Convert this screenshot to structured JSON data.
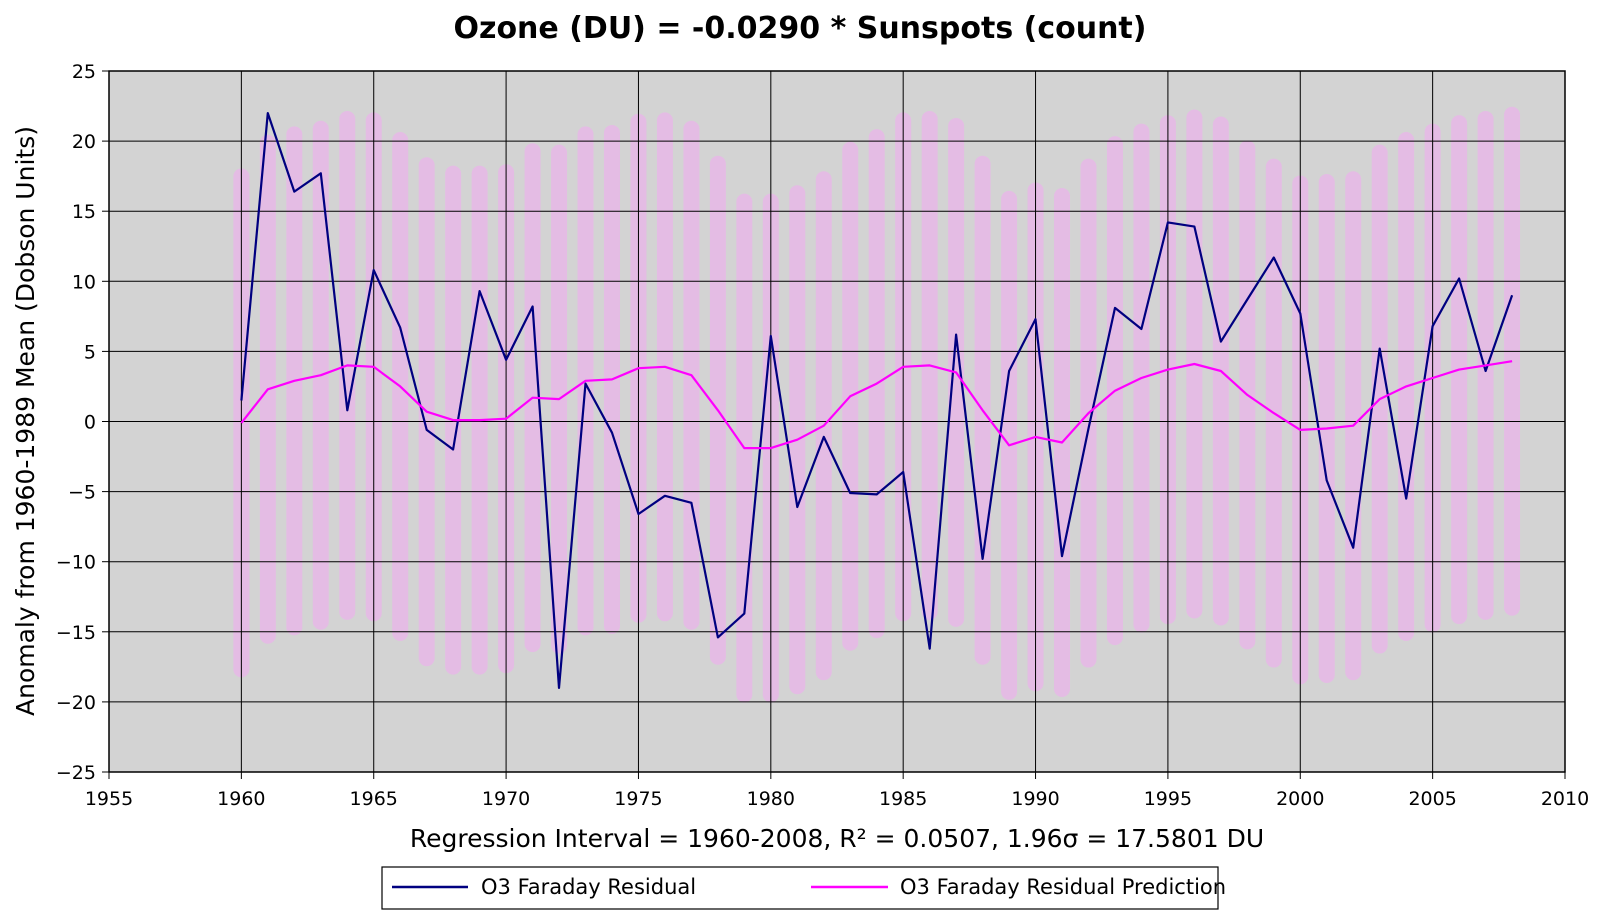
{
  "chart_data": {
    "type": "line",
    "title": "Ozone (DU) = -0.0290 * Sunspots (count)",
    "xlabel": "Regression Interval = 1960-2008, R² = 0.0507, 1.96σ = 17.5801 DU",
    "ylabel": "Anomaly from 1960-1989 Mean (Dobson Units)",
    "xlim": [
      1955,
      2010
    ],
    "ylim": [
      -25,
      25
    ],
    "xticks": [
      "1955",
      "1960",
      "1965",
      "1970",
      "1975",
      "1980",
      "1985",
      "1990",
      "1995",
      "2000",
      "2005",
      "2010"
    ],
    "yticks": [
      "25",
      "20",
      "15",
      "10",
      "5",
      "0",
      "−5",
      "−10",
      "−15",
      "−20",
      "−25"
    ],
    "grid": true,
    "legend_position": "bottom",
    "colors": {
      "plot_background": "#d3d3d3",
      "residual": "#000080",
      "prediction": "#ff00ff",
      "interval_band": "#e7b9e7"
    },
    "x": [
      1960,
      1961,
      1962,
      1963,
      1964,
      1965,
      1966,
      1967,
      1968,
      1969,
      1970,
      1971,
      1972,
      1973,
      1974,
      1975,
      1976,
      1977,
      1978,
      1979,
      1980,
      1981,
      1982,
      1983,
      1984,
      1985,
      1986,
      1987,
      1988,
      1989,
      1990,
      1991,
      1992,
      1993,
      1994,
      1995,
      1996,
      1997,
      1998,
      1999,
      2000,
      2001,
      2002,
      2003,
      2004,
      2005,
      2006,
      2007,
      2008
    ],
    "series": [
      {
        "name": "O3 Faraday Residual",
        "values": [
          1.5,
          22.0,
          16.4,
          17.7,
          0.8,
          10.8,
          6.7,
          -0.6,
          -2.0,
          9.3,
          4.4,
          8.2,
          -19.0,
          2.7,
          -0.8,
          -6.6,
          -5.3,
          -5.8,
          -15.4,
          -13.7,
          6.1,
          -6.1,
          -1.1,
          -5.1,
          -5.2,
          -3.6,
          -16.2,
          6.2,
          -9.8,
          3.6,
          7.3,
          -9.6,
          -0.5,
          8.1,
          6.6,
          14.2,
          13.9,
          5.7,
          8.7,
          11.7,
          7.7,
          -4.2,
          -9.0,
          5.2,
          -5.5,
          6.8,
          10.2,
          3.6,
          9.0
        ]
      },
      {
        "name": "O3 Faraday Residual Prediction",
        "values": [
          -0.1,
          2.3,
          2.9,
          3.3,
          4.0,
          3.9,
          2.5,
          0.7,
          0.1,
          0.1,
          0.2,
          1.7,
          1.6,
          2.9,
          3.0,
          3.8,
          3.9,
          3.3,
          0.8,
          -1.9,
          -1.9,
          -1.3,
          -0.3,
          1.8,
          2.7,
          3.9,
          4.0,
          3.5,
          0.8,
          -1.7,
          -1.1,
          -1.5,
          0.6,
          2.2,
          3.1,
          3.7,
          4.1,
          3.6,
          1.9,
          0.6,
          -0.6,
          -0.5,
          -0.3,
          1.6,
          2.5,
          3.1,
          3.7,
          4.0,
          4.3
        ]
      }
    ],
    "interval_half_width": 17.5801
  }
}
